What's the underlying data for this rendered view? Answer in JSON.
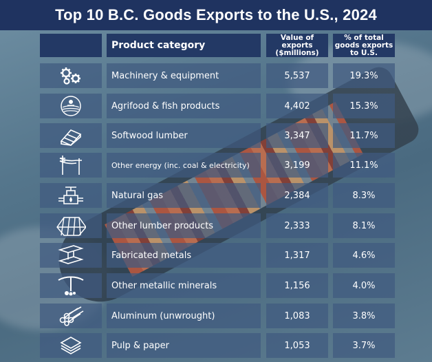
{
  "title": "Top 10 B.C. Goods Exports to the U.S., 2024",
  "columns": {
    "category": "Product category",
    "value": "Value of exports ($millions)",
    "percent": "% of total goods exports to U.S."
  },
  "rows": [
    {
      "icon": "gears-icon",
      "category": "Machinery & equipment",
      "value": "5,537",
      "percent": "19.3%"
    },
    {
      "icon": "farm-icon",
      "category": "Agrifood & fish products",
      "value": "4,402",
      "percent": "15.3%"
    },
    {
      "icon": "lumber-icon",
      "category": "Softwood lumber",
      "value": "3,347",
      "percent": "11.7%"
    },
    {
      "icon": "power-lines-icon",
      "category": "Other energy (inc. coal & electricity)",
      "value": "3,199",
      "percent": "11.1%"
    },
    {
      "icon": "gas-valve-icon",
      "category": "Natural gas",
      "value": "2,384",
      "percent": "8.3%"
    },
    {
      "icon": "wood-planks-icon",
      "category": "Other lumber products",
      "value": "2,333",
      "percent": "8.1%"
    },
    {
      "icon": "steel-beam-icon",
      "category": "Fabricated metals",
      "value": "1,317",
      "percent": "4.6%"
    },
    {
      "icon": "pickaxe-icon",
      "category": "Other metallic minerals",
      "value": "1,156",
      "percent": "4.0%"
    },
    {
      "icon": "aluminum-pipes-icon",
      "category": "Aluminum (unwrought)",
      "value": "1,083",
      "percent": "3.8%"
    },
    {
      "icon": "paper-stack-icon",
      "category": "Pulp & paper",
      "value": "1,053",
      "percent": "3.7%"
    }
  ]
}
